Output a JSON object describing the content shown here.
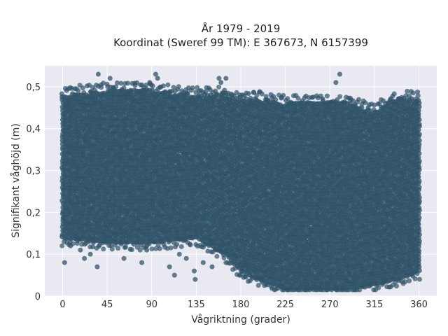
{
  "chart_data": {
    "type": "scatter",
    "title_line1": "År 1979 - 2019",
    "title_line2": "Koordinat (Sweref 99 TM): E 367673, N 6157399",
    "xlabel": "Vågriktning (grader)",
    "ylabel": "Signifikant våghöjd (m)",
    "xlim": [
      -18,
      378
    ],
    "ylim": [
      0,
      0.55
    ],
    "xticks": [
      0,
      45,
      90,
      135,
      180,
      225,
      270,
      315,
      360
    ],
    "xtick_labels": [
      "0",
      "45",
      "90",
      "135",
      "180",
      "225",
      "270",
      "315",
      "360"
    ],
    "yticks": [
      0,
      0.1,
      0.2,
      0.3,
      0.4,
      0.5
    ],
    "ytick_labels": [
      "0",
      "0,1",
      "0,2",
      "0,3",
      "0,4",
      "0,5"
    ],
    "grid": true,
    "background": "#e9e9f1",
    "marker_color": "#2f5368",
    "envelope": [
      {
        "x": 0,
        "ymin": 0.14,
        "ymax": 0.48
      },
      {
        "x": 45,
        "ymin": 0.13,
        "ymax": 0.49
      },
      {
        "x": 90,
        "ymin": 0.13,
        "ymax": 0.49
      },
      {
        "x": 135,
        "ymin": 0.14,
        "ymax": 0.48
      },
      {
        "x": 165,
        "ymin": 0.1,
        "ymax": 0.48
      },
      {
        "x": 180,
        "ymin": 0.06,
        "ymax": 0.47
      },
      {
        "x": 200,
        "ymin": 0.04,
        "ymax": 0.47
      },
      {
        "x": 225,
        "ymin": 0.02,
        "ymax": 0.46
      },
      {
        "x": 250,
        "ymin": 0.02,
        "ymax": 0.46
      },
      {
        "x": 270,
        "ymin": 0.02,
        "ymax": 0.46
      },
      {
        "x": 290,
        "ymin": 0.02,
        "ymax": 0.46
      },
      {
        "x": 315,
        "ymin": 0.03,
        "ymax": 0.44
      },
      {
        "x": 335,
        "ymin": 0.04,
        "ymax": 0.47
      },
      {
        "x": 360,
        "ymin": 0.06,
        "ymax": 0.47
      }
    ],
    "outliers": [
      {
        "x": 2,
        "y": 0.08
      },
      {
        "x": 8,
        "y": 0.12
      },
      {
        "x": 18,
        "y": 0.11
      },
      {
        "x": 22,
        "y": 0.09
      },
      {
        "x": 28,
        "y": 0.1
      },
      {
        "x": 35,
        "y": 0.07
      },
      {
        "x": 36,
        "y": 0.53
      },
      {
        "x": 48,
        "y": 0.52
      },
      {
        "x": 62,
        "y": 0.09
      },
      {
        "x": 80,
        "y": 0.08
      },
      {
        "x": 85,
        "y": 0.11
      },
      {
        "x": 88,
        "y": 0.51
      },
      {
        "x": 94,
        "y": 0.53
      },
      {
        "x": 96,
        "y": 0.52
      },
      {
        "x": 108,
        "y": 0.07
      },
      {
        "x": 113,
        "y": 0.05
      },
      {
        "x": 118,
        "y": 0.1
      },
      {
        "x": 125,
        "y": 0.09
      },
      {
        "x": 133,
        "y": 0.06
      },
      {
        "x": 134,
        "y": 0.04
      },
      {
        "x": 142,
        "y": 0.08
      },
      {
        "x": 151,
        "y": 0.07
      },
      {
        "x": 158,
        "y": 0.52
      },
      {
        "x": 160,
        "y": 0.51
      },
      {
        "x": 165,
        "y": 0.52
      },
      {
        "x": 280,
        "y": 0.53
      },
      {
        "x": 276,
        "y": 0.51
      }
    ]
  }
}
